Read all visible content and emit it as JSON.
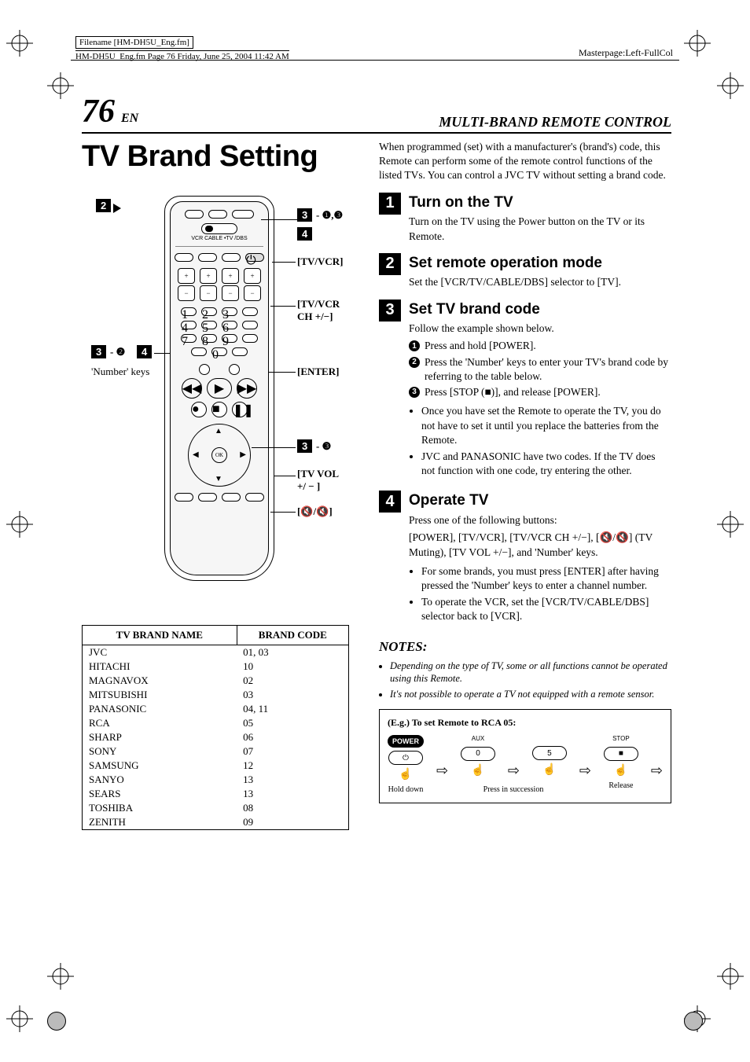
{
  "meta": {
    "filename_label": "Filename [HM-DH5U_Eng.fm]",
    "pageinfo": "HM-DH5U_Eng.fm  Page 76  Friday, June 25, 2004  11:42 AM",
    "masterpage": "Masterpage:Left-FullCol"
  },
  "header": {
    "page_number": "76",
    "lang": "EN",
    "section": "MULTI-BRAND REMOTE CONTROL"
  },
  "title": "TV Brand Setting",
  "remote": {
    "callouts": {
      "c2": "2",
      "c3a": "3",
      "c3a_sub": "- ❶,❸",
      "c4": "4",
      "tv_vcr": "[TV/VCR]",
      "tv_vcr_ch": "[TV/VCR CH +/−]",
      "c3b": "3",
      "c3b_sub": "- ❷",
      "c4b": "4",
      "number_keys": "'Number' keys",
      "enter": "[ENTER]",
      "c3c": "3",
      "c3c_sub": "- ❸",
      "tv_vol": "[TV VOL +/ − ]",
      "mute": "[🔇/🔇]"
    },
    "slider_labels": "VCR  CABLE\n•TV   /DBS"
  },
  "brand_table": {
    "header_name": "TV BRAND NAME",
    "header_code": "BRAND CODE",
    "rows": [
      [
        "JVC",
        "01, 03"
      ],
      [
        "HITACHI",
        "10"
      ],
      [
        "MAGNAVOX",
        "02"
      ],
      [
        "MITSUBISHI",
        "03"
      ],
      [
        "PANASONIC",
        "04, 11"
      ],
      [
        "RCA",
        "05"
      ],
      [
        "SHARP",
        "06"
      ],
      [
        "SONY",
        "07"
      ],
      [
        "SAMSUNG",
        "12"
      ],
      [
        "SANYO",
        "13"
      ],
      [
        "SEARS",
        "13"
      ],
      [
        "TOSHIBA",
        "08"
      ],
      [
        "ZENITH",
        "09"
      ]
    ]
  },
  "intro": "When programmed (set) with a manufacturer's (brand's) code, this Remote can perform some of the remote control functions of the listed TVs. You can control a JVC TV without setting a brand code.",
  "steps": {
    "s1": {
      "num": "1",
      "title": "Turn on the TV",
      "text": "Turn on the TV using the Power button on the TV or its Remote."
    },
    "s2": {
      "num": "2",
      "title": "Set remote operation mode",
      "text": "Set the [VCR/TV/CABLE/DBS] selector to [TV]."
    },
    "s3": {
      "num": "3",
      "title": "Set TV brand code",
      "text": "Follow the example shown below.",
      "sub1": "Press and hold [POWER].",
      "sub2": "Press the 'Number' keys to enter your TV's brand code by referring to the table below.",
      "sub3": "Press [STOP (■)], and release [POWER].",
      "bullet1": "Once you have set the Remote to operate the TV, you do not have to set it until you replace the batteries from the Remote.",
      "bullet2": "JVC and PANASONIC have two codes. If the TV does not function with one code, try entering the other."
    },
    "s4": {
      "num": "4",
      "title": "Operate TV",
      "text1": "Press one of the following buttons:",
      "text2": "[POWER], [TV/VCR], [TV/VCR CH +/−], [🔇/🔇] (TV Muting), [TV VOL +/−], and 'Number' keys.",
      "bullet1": "For some brands, you must press [ENTER] after having pressed the 'Number' keys to enter a channel number.",
      "bullet2": "To operate the VCR, set the [VCR/TV/CABLE/DBS] selector back to [VCR]."
    }
  },
  "notes": {
    "title": "NOTES:",
    "n1": "Depending on the type of TV, some or all functions cannot be operated using this Remote.",
    "n2": "It's not possible to operate a TV not equipped with a remote sensor."
  },
  "example": {
    "title": "(E.g.)  To set Remote to RCA 05:",
    "power": "POWER",
    "aux": "AUX",
    "stop": "STOP",
    "d0": "0",
    "d5": "5",
    "stop_sym": "■",
    "hold": "Hold down",
    "press_succ": "Press in succession",
    "release": "Release"
  },
  "colors": {
    "black": "#000000",
    "white": "#ffffff",
    "grey_fill": "#f6f6f6"
  }
}
